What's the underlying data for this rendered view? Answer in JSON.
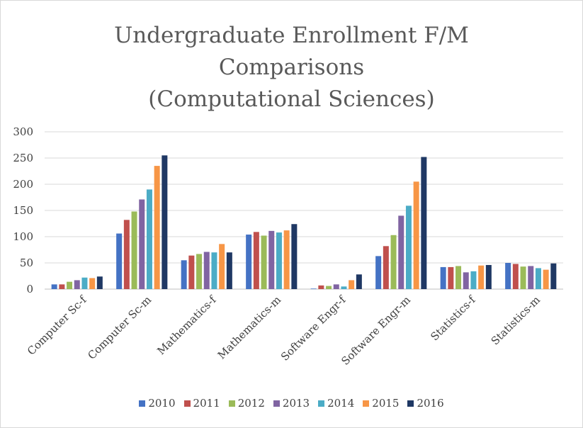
{
  "chart_data": {
    "type": "bar",
    "title_lines": [
      "Undergraduate Enrollment F/M",
      "Comparisons",
      "(Computational Sciences)"
    ],
    "categories": [
      "Computer Sc-f",
      "Computer Sc-m",
      "Mathematics-f",
      "Mathematics-m",
      "Software Engr-f",
      "Software Engr-m",
      "Statistics-f",
      "Statistics-m"
    ],
    "series": [
      {
        "name": "2010",
        "color": "#4472c4",
        "values": [
          9,
          106,
          55,
          104,
          1,
          63,
          42,
          50
        ]
      },
      {
        "name": "2011",
        "color": "#c0504d",
        "values": [
          9,
          132,
          64,
          109,
          7,
          82,
          42,
          48
        ]
      },
      {
        "name": "2012",
        "color": "#9bbb59",
        "values": [
          14,
          148,
          67,
          102,
          6,
          103,
          44,
          43
        ]
      },
      {
        "name": "2013",
        "color": "#8064a2",
        "values": [
          17,
          171,
          71,
          111,
          9,
          140,
          32,
          44
        ]
      },
      {
        "name": "2014",
        "color": "#4bacc6",
        "values": [
          22,
          190,
          70,
          108,
          5,
          159,
          34,
          40
        ]
      },
      {
        "name": "2015",
        "color": "#f79646",
        "values": [
          21,
          235,
          86,
          112,
          17,
          205,
          45,
          37
        ]
      },
      {
        "name": "2016",
        "color": "#1f3864",
        "values": [
          24,
          255,
          70,
          124,
          28,
          252,
          46,
          49
        ]
      }
    ],
    "yticks": [
      0,
      50,
      100,
      150,
      200,
      250,
      300
    ],
    "ylim": [
      0,
      300
    ],
    "grid": true,
    "legend_position": "bottom"
  }
}
